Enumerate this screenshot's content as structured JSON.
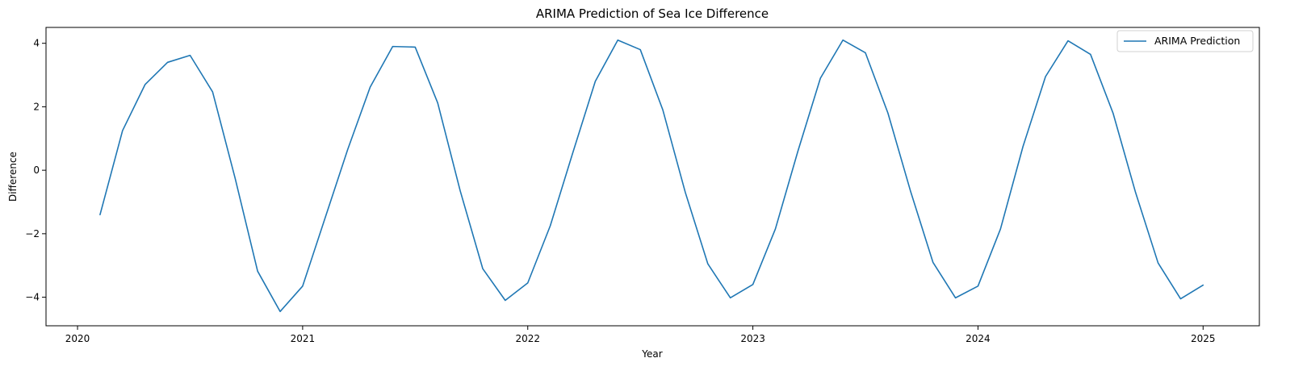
{
  "chart_data": {
    "type": "line",
    "title": "ARIMA Prediction of Sea Ice Difference",
    "xlabel": "Year",
    "ylabel": "Difference",
    "xlim": [
      2019.86,
      2025.25
    ],
    "ylim": [
      -4.9,
      4.5
    ],
    "xticks": [
      2020,
      2021,
      2022,
      2023,
      2024,
      2025
    ],
    "xtick_labels": [
      "2020",
      "2021",
      "2022",
      "2023",
      "2024",
      "2025"
    ],
    "yticks": [
      -4,
      -2,
      0,
      2,
      4
    ],
    "ytick_labels": [
      "−4",
      "−2",
      "0",
      "2",
      "4"
    ],
    "grid": false,
    "legend_position": "top-right",
    "series": [
      {
        "name": "ARIMA Prediction",
        "color": "#1f77b4",
        "x": [
          2020.1,
          2020.2,
          2020.3,
          2020.4,
          2020.5,
          2020.6,
          2020.7,
          2020.8,
          2020.9,
          2021.0,
          2021.1,
          2021.2,
          2021.3,
          2021.4,
          2021.5,
          2021.6,
          2021.7,
          2021.8,
          2021.9,
          2022.0,
          2022.1,
          2022.2,
          2022.3,
          2022.4,
          2022.5,
          2022.6,
          2022.7,
          2022.8,
          2022.9,
          2023.0,
          2023.1,
          2023.2,
          2023.3,
          2023.4,
          2023.5,
          2023.6,
          2023.7,
          2023.8,
          2023.9,
          2024.0,
          2024.1,
          2024.2,
          2024.3,
          2024.4,
          2024.5,
          2024.6,
          2024.7,
          2024.8,
          2024.9,
          2025.0
        ],
        "y": [
          -1.4,
          1.25,
          2.7,
          3.4,
          3.62,
          2.47,
          -0.25,
          -3.18,
          -4.45,
          -3.65,
          -1.5,
          0.65,
          2.62,
          3.9,
          3.88,
          2.12,
          -0.65,
          -3.1,
          -4.1,
          -3.55,
          -1.75,
          0.55,
          2.8,
          4.1,
          3.8,
          1.9,
          -0.7,
          -2.95,
          -4.02,
          -3.6,
          -1.85,
          0.6,
          2.9,
          4.1,
          3.7,
          1.8,
          -0.65,
          -2.9,
          -4.02,
          -3.65,
          -1.85,
          0.75,
          2.95,
          4.08,
          3.65,
          1.8,
          -0.7,
          -2.92,
          -4.05,
          -3.62
        ]
      }
    ]
  }
}
